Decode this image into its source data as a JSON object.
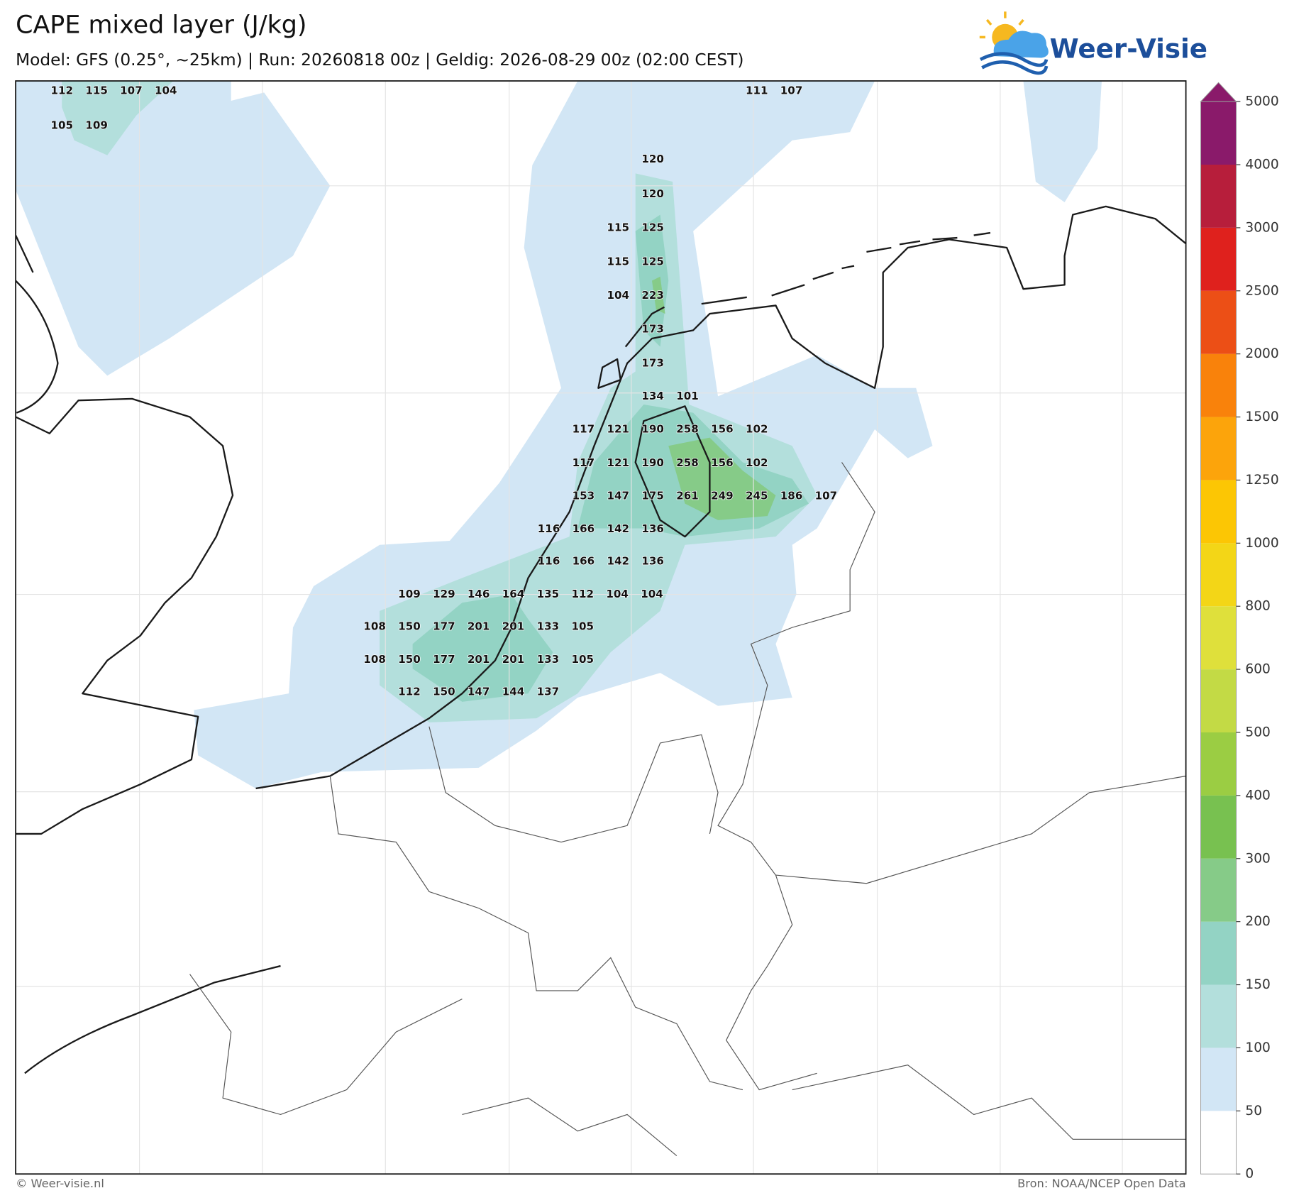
{
  "header": {
    "title": "CAPE mixed layer (J/kg)",
    "subtitle": "Model: GFS (0.25°, ~25km)  |  Run: 20260818 00z  |  Geldig: 2026-08-29 00z (02:00 CEST)",
    "logo": "Weer-Visie"
  },
  "map": {
    "labels": [
      [
        112,
        115,
        107,
        104
      ],
      [
        111,
        107
      ],
      [
        105,
        109
      ],
      [
        120
      ],
      [
        120
      ],
      [
        115,
        125
      ],
      [
        115,
        125
      ],
      [
        104,
        223
      ],
      [
        173
      ],
      [
        173
      ],
      [
        134,
        101
      ],
      [
        117,
        121,
        190,
        258,
        156,
        102
      ],
      [
        117,
        121,
        190,
        258,
        156,
        102
      ],
      [
        153,
        147,
        175,
        261,
        249,
        245,
        186,
        107
      ],
      [
        116,
        166,
        142,
        136
      ],
      [
        116,
        166,
        142,
        136
      ],
      [
        109,
        129,
        146,
        164,
        135,
        112,
        104,
        104
      ],
      [
        108,
        150,
        177,
        201,
        201,
        133,
        105
      ],
      [
        108,
        150,
        177,
        201,
        201,
        133,
        105
      ],
      [
        112,
        150,
        147,
        144,
        137
      ]
    ],
    "colorbar": {
      "ticks": [
        0,
        50,
        100,
        150,
        200,
        300,
        400,
        500,
        600,
        800,
        1000,
        1250,
        1500,
        2000,
        2500,
        3000,
        4000,
        5000
      ],
      "colors": [
        "#ffffff",
        "#d2e6f5",
        "#b3dfdc",
        "#93d3c4",
        "#86cb88",
        "#78c150",
        "#9bcd43",
        "#c3da45",
        "#dfe03b",
        "#f3d617",
        "#fcc604",
        "#fca40b",
        "#f9820b",
        "#ec4f16",
        "#df211d",
        "#b71e3b",
        "#8a1a6a"
      ]
    }
  },
  "footer": {
    "left": "© Weer-visie.nl",
    "right": "Bron: NOAA/NCEP Open Data"
  }
}
